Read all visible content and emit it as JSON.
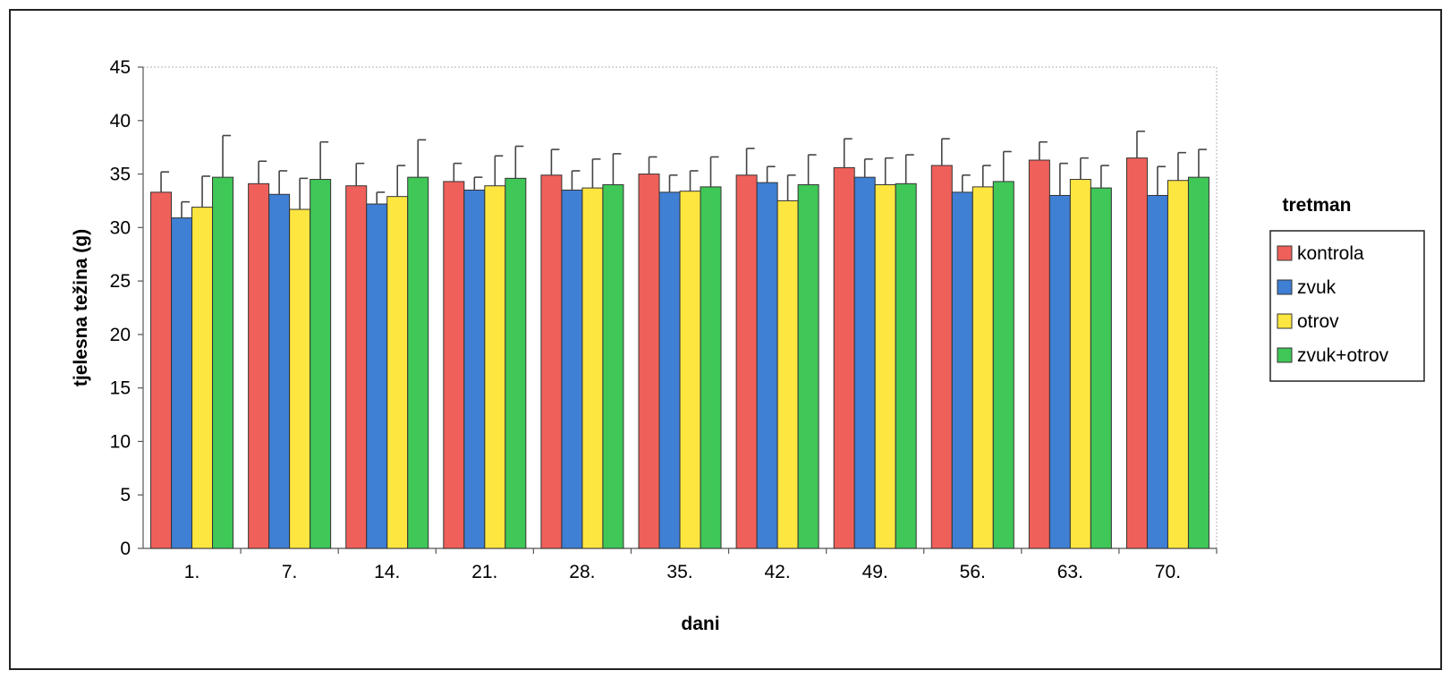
{
  "chart_data": {
    "type": "bar",
    "title": "",
    "xlabel": "dani",
    "ylabel": "tjelesna težina (g)",
    "ylim": [
      0,
      45
    ],
    "yticks": [
      0,
      5,
      10,
      15,
      20,
      25,
      30,
      35,
      40,
      45
    ],
    "grid": false,
    "categories": [
      "1.",
      "7.",
      "14.",
      "21.",
      "28.",
      "35.",
      "42.",
      "49.",
      "56.",
      "63.",
      "70."
    ],
    "legend": {
      "title": "tretman",
      "position": "right"
    },
    "series": [
      {
        "name": "kontrola",
        "color": "#f0605a",
        "values": [
          33.3,
          34.1,
          33.9,
          34.3,
          34.9,
          35.0,
          34.9,
          35.6,
          35.8,
          36.3,
          36.5
        ],
        "errors": [
          1.9,
          2.1,
          2.1,
          1.7,
          2.4,
          1.6,
          2.5,
          2.7,
          2.5,
          1.7,
          2.5
        ]
      },
      {
        "name": "zvuk",
        "color": "#3f7fd4",
        "values": [
          30.9,
          33.1,
          32.2,
          33.5,
          33.5,
          33.3,
          34.2,
          34.7,
          33.3,
          33.0,
          33.0
        ],
        "errors": [
          1.5,
          2.2,
          1.1,
          1.2,
          1.8,
          1.6,
          1.5,
          1.7,
          1.6,
          3.0,
          2.7
        ]
      },
      {
        "name": "otrov",
        "color": "#fde640",
        "values": [
          31.9,
          31.7,
          32.9,
          33.9,
          33.7,
          33.4,
          32.5,
          34.0,
          33.8,
          34.5,
          34.4
        ],
        "errors": [
          2.9,
          2.9,
          2.9,
          2.8,
          2.7,
          1.9,
          2.4,
          2.5,
          2.0,
          2.0,
          2.6
        ]
      },
      {
        "name": "zvuk+otrov",
        "color": "#3fc757",
        "values": [
          34.7,
          34.5,
          34.7,
          34.6,
          34.0,
          33.8,
          34.0,
          34.1,
          34.3,
          33.7,
          34.7
        ],
        "errors": [
          3.9,
          3.5,
          3.5,
          3.0,
          2.9,
          2.8,
          2.8,
          2.7,
          2.8,
          2.1,
          2.6
        ]
      }
    ]
  }
}
